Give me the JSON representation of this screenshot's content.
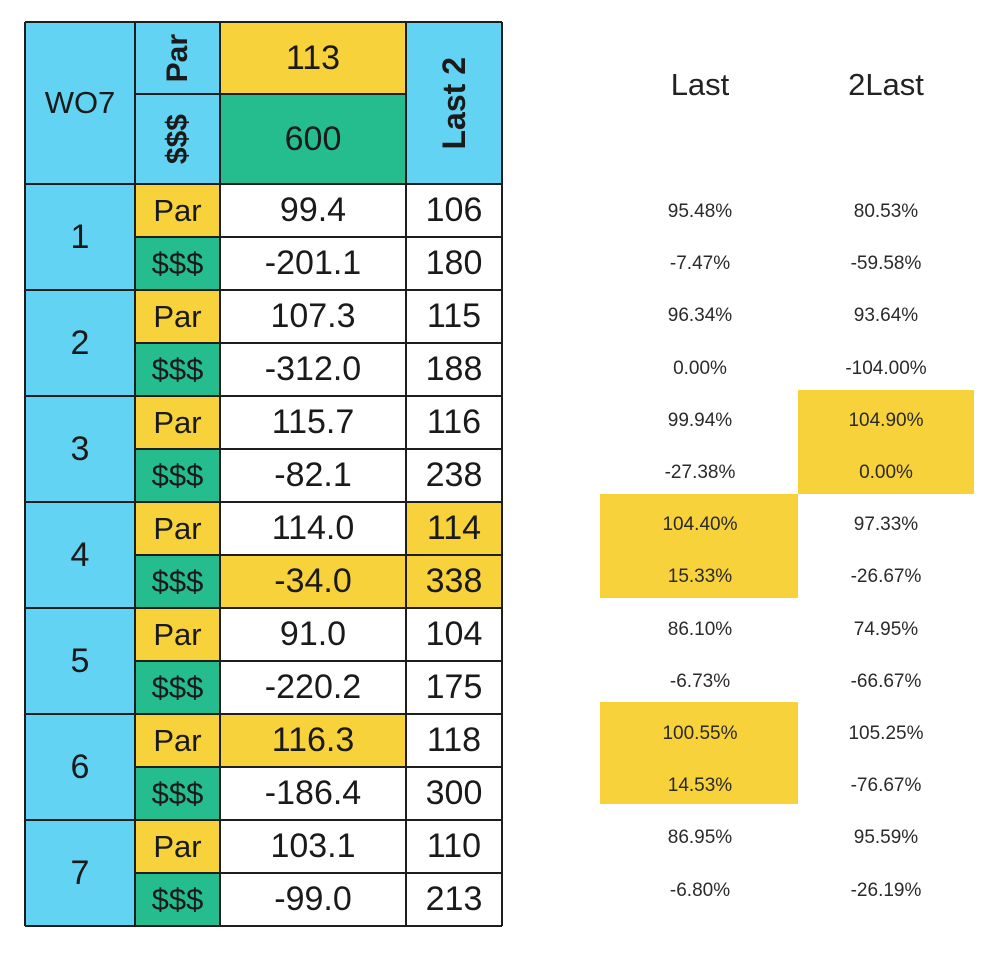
{
  "header": {
    "title": "WO7",
    "par_label": "Par",
    "money_label": "$$$",
    "par_value": "113",
    "money_value": "600",
    "last2_label": "Last 2"
  },
  "rows": [
    {
      "num": "1",
      "par_label": "Par",
      "money_label": "$$$",
      "par_value": "99.4",
      "money_value": "-201.1",
      "par_last2": "106",
      "money_last2": "180"
    },
    {
      "num": "2",
      "par_label": "Par",
      "money_label": "$$$",
      "par_value": "107.3",
      "money_value": "-312.0",
      "par_last2": "115",
      "money_last2": "188"
    },
    {
      "num": "3",
      "par_label": "Par",
      "money_label": "$$$",
      "par_value": "115.7",
      "money_value": "-82.1",
      "par_last2": "116",
      "money_last2": "238"
    },
    {
      "num": "4",
      "par_label": "Par",
      "money_label": "$$$",
      "par_value": "114.0",
      "money_value": "-34.0",
      "par_last2": "114",
      "money_last2": "338"
    },
    {
      "num": "5",
      "par_label": "Par",
      "money_label": "$$$",
      "par_value": "91.0",
      "money_value": "-220.2",
      "par_last2": "104",
      "money_last2": "175"
    },
    {
      "num": "6",
      "par_label": "Par",
      "money_label": "$$$",
      "par_value": "116.3",
      "money_value": "-186.4",
      "par_last2": "118",
      "money_last2": "300"
    },
    {
      "num": "7",
      "par_label": "Par",
      "money_label": "$$$",
      "par_value": "103.1",
      "money_value": "-99.0",
      "par_last2": "110",
      "money_last2": "213"
    }
  ],
  "side": {
    "last_header": "Last",
    "last2_header": "2Last",
    "values": [
      {
        "last": "95.48%",
        "last2": "80.53%"
      },
      {
        "last": "-7.47%",
        "last2": "-59.58%"
      },
      {
        "last": "96.34%",
        "last2": "93.64%"
      },
      {
        "last": "0.00%",
        "last2": "-104.00%"
      },
      {
        "last": "99.94%",
        "last2": "104.90%"
      },
      {
        "last": "-27.38%",
        "last2": "0.00%"
      },
      {
        "last": "104.40%",
        "last2": "97.33%"
      },
      {
        "last": "15.33%",
        "last2": "-26.67%"
      },
      {
        "last": "86.10%",
        "last2": "74.95%"
      },
      {
        "last": "-6.73%",
        "last2": "-66.67%"
      },
      {
        "last": "100.55%",
        "last2": "105.25%"
      },
      {
        "last": "14.53%",
        "last2": "-76.67%"
      },
      {
        "last": "86.95%",
        "last2": "95.59%"
      },
      {
        "last": "-6.80%",
        "last2": "-26.19%"
      }
    ]
  },
  "colors": {
    "blue": "#62d3f2",
    "yellow": "#f7d23b",
    "green": "#25bd8e"
  }
}
